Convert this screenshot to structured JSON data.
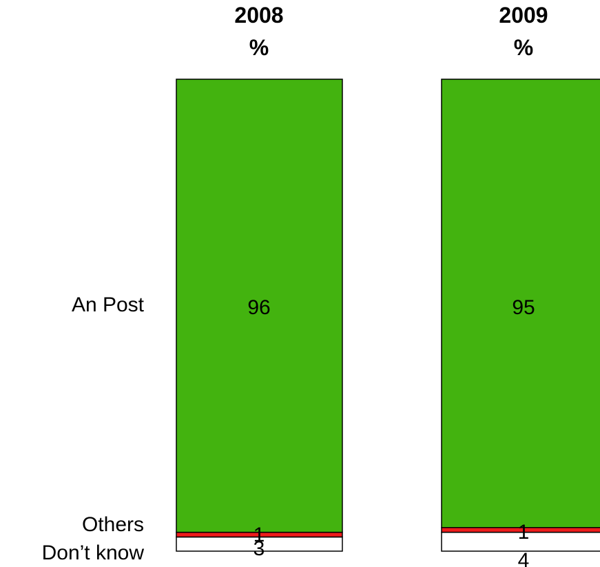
{
  "chart_data": {
    "type": "bar",
    "stacked": true,
    "orientation": "vertical",
    "ylim": [
      0,
      100
    ],
    "columns": [
      {
        "year": "2008",
        "unit": "%"
      },
      {
        "year": "2009",
        "unit": "%"
      }
    ],
    "series": [
      {
        "name": "Don’t know",
        "color": "#ffffff",
        "values": [
          3,
          4
        ]
      },
      {
        "name": "Others",
        "color": "#ee1c1c",
        "values": [
          1,
          1
        ]
      },
      {
        "name": "An Post",
        "color": "#43b30f",
        "values": [
          96,
          95
        ]
      }
    ]
  }
}
